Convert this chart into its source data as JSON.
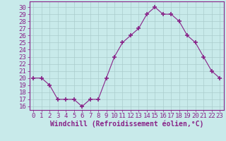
{
  "x": [
    0,
    1,
    2,
    3,
    4,
    5,
    6,
    7,
    8,
    9,
    10,
    11,
    12,
    13,
    14,
    15,
    16,
    17,
    18,
    19,
    20,
    21,
    22,
    23
  ],
  "y": [
    20,
    20,
    19,
    17,
    17,
    17,
    16,
    17,
    17,
    20,
    23,
    25,
    26,
    27,
    29,
    30,
    29,
    29,
    28,
    26,
    25,
    23,
    21,
    20
  ],
  "line_color": "#882288",
  "marker": "+",
  "marker_size": 4,
  "marker_lw": 1.2,
  "bg_color": "#c8eaea",
  "grid_color": "#aacccc",
  "xlabel": "Windchill (Refroidissement éolien,°C)",
  "xlabel_color": "#882288",
  "ylabel_ticks": [
    16,
    17,
    18,
    19,
    20,
    21,
    22,
    23,
    24,
    25,
    26,
    27,
    28,
    29,
    30
  ],
  "ylim": [
    15.5,
    30.8
  ],
  "xlim": [
    -0.5,
    23.5
  ],
  "tick_color": "#882288",
  "border_color": "#882288",
  "font_size": 6.5,
  "xlabel_font_size": 7.0
}
